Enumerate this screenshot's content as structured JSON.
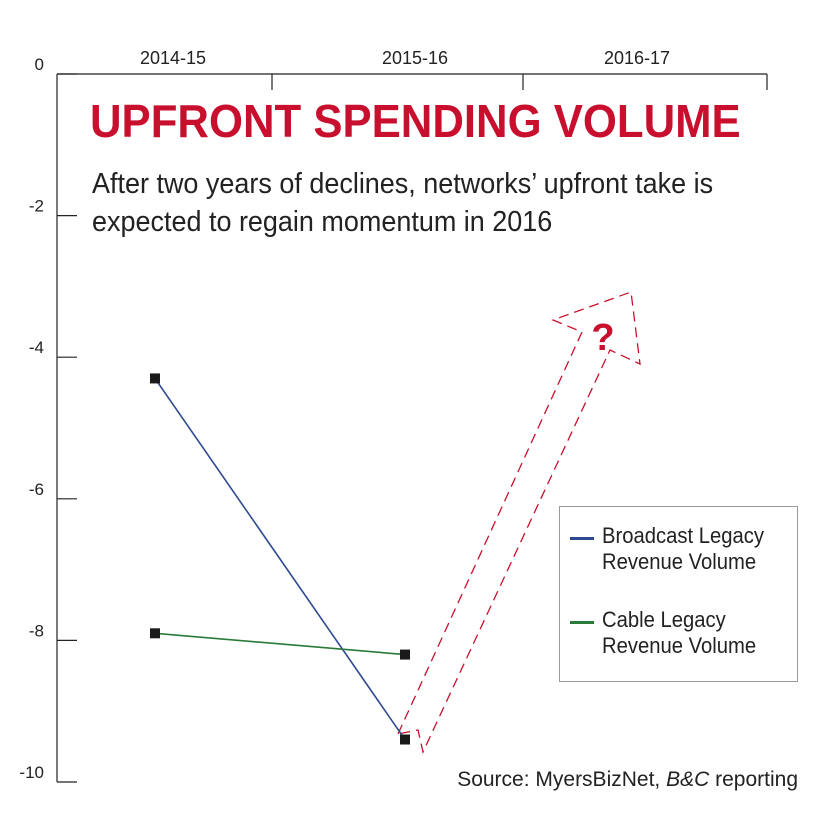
{
  "chart_data": {
    "type": "line",
    "title": "UPFRONT SPENDING VOLUME",
    "subtitle": "After two years of declines, networks’ upfront take is expected to regain momentum in 2016",
    "categories": [
      "2014-15",
      "2015-16",
      "2016-17"
    ],
    "ylim": [
      -10,
      0
    ],
    "yticks": [
      0,
      -2,
      -4,
      -6,
      -8,
      -10
    ],
    "ytick_labels": [
      "0",
      "-2",
      "-4",
      "-6",
      "-8",
      "-10"
    ],
    "x_axis_position": "top",
    "grid": false,
    "legend_position": "right",
    "series": [
      {
        "name": "Broadcast Legacy Revenue Volume",
        "color": "#2e4a8e",
        "x": [
          "2014-15",
          "2015-16"
        ],
        "values": [
          -4.3,
          -9.4
        ]
      },
      {
        "name": "Cable Legacy Revenue Volume",
        "color": "#2a7a3a",
        "x": [
          "2014-15",
          "2015-16"
        ],
        "values": [
          -7.9,
          -8.2
        ]
      }
    ],
    "annotation": {
      "text": "?",
      "color": "#c8102e",
      "style": "dashed projection arrow toward 2016-17"
    },
    "source": {
      "prefix": "Source: MyersBizNet, ",
      "italic": "B&C",
      "suffix": " reporting"
    }
  }
}
